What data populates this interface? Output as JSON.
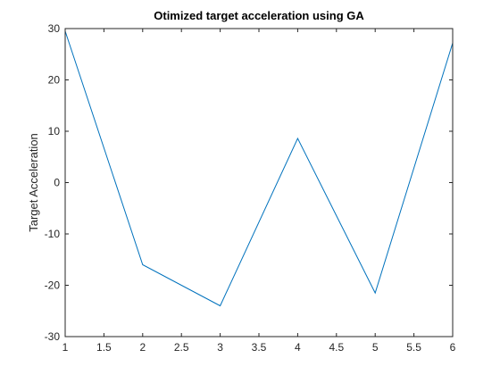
{
  "chart_data": {
    "type": "line",
    "title": "Otimized target acceleration using GA",
    "xlabel": "",
    "ylabel": "Target Acceleration",
    "xlim": [
      1,
      6
    ],
    "ylim": [
      -30,
      30
    ],
    "x_ticks": [
      1,
      1.5,
      2,
      2.5,
      3,
      3.5,
      4,
      4.5,
      5,
      5.5,
      6
    ],
    "y_ticks": [
      -30,
      -20,
      -10,
      0,
      10,
      20,
      30
    ],
    "x_tick_labels": [
      "1",
      "1.5",
      "2",
      "2.5",
      "3",
      "3.5",
      "4",
      "4.5",
      "5",
      "5.5",
      "6"
    ],
    "y_tick_labels": [
      "-30",
      "-20",
      "-10",
      "0",
      "10",
      "20",
      "30"
    ],
    "grid": false,
    "series": [
      {
        "x": [
          1,
          2,
          3,
          4,
          5,
          6
        ],
        "values": [
          29.5,
          -16,
          -24,
          8.6,
          -21.5,
          27.2
        ],
        "color": "#0072BD"
      }
    ]
  }
}
